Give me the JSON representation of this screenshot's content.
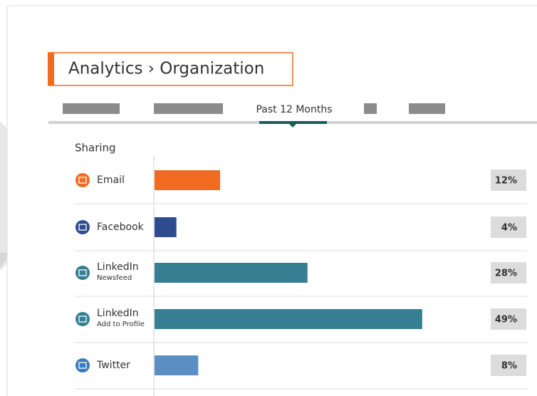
{
  "header": {
    "title": "Analytics › Organization"
  },
  "tabs": {
    "active": "Past 12 Months"
  },
  "section": {
    "title": "Sharing"
  },
  "rows": [
    {
      "label": "Email",
      "value": 12,
      "value_label": "12%",
      "color": "#f26b21",
      "icon": "#f26b21"
    },
    {
      "label": "Facebook",
      "value": 4,
      "value_label": "4%",
      "color": "#2d4b8e",
      "icon": "#2d4b8e"
    },
    {
      "label": "LinkedIn",
      "sublabel": "Newsfeed",
      "value": 28,
      "value_label": "28%",
      "color": "#367f93",
      "icon": "#367f93"
    },
    {
      "label": "LinkedIn",
      "sublabel": "Add to Profile",
      "value": 49,
      "value_label": "49%",
      "color": "#367f93",
      "icon": "#367f93"
    },
    {
      "label": "Twitter",
      "value": 8,
      "value_label": "8%",
      "color": "#5b8fc4",
      "icon": "#3c7cb8"
    }
  ]
}
